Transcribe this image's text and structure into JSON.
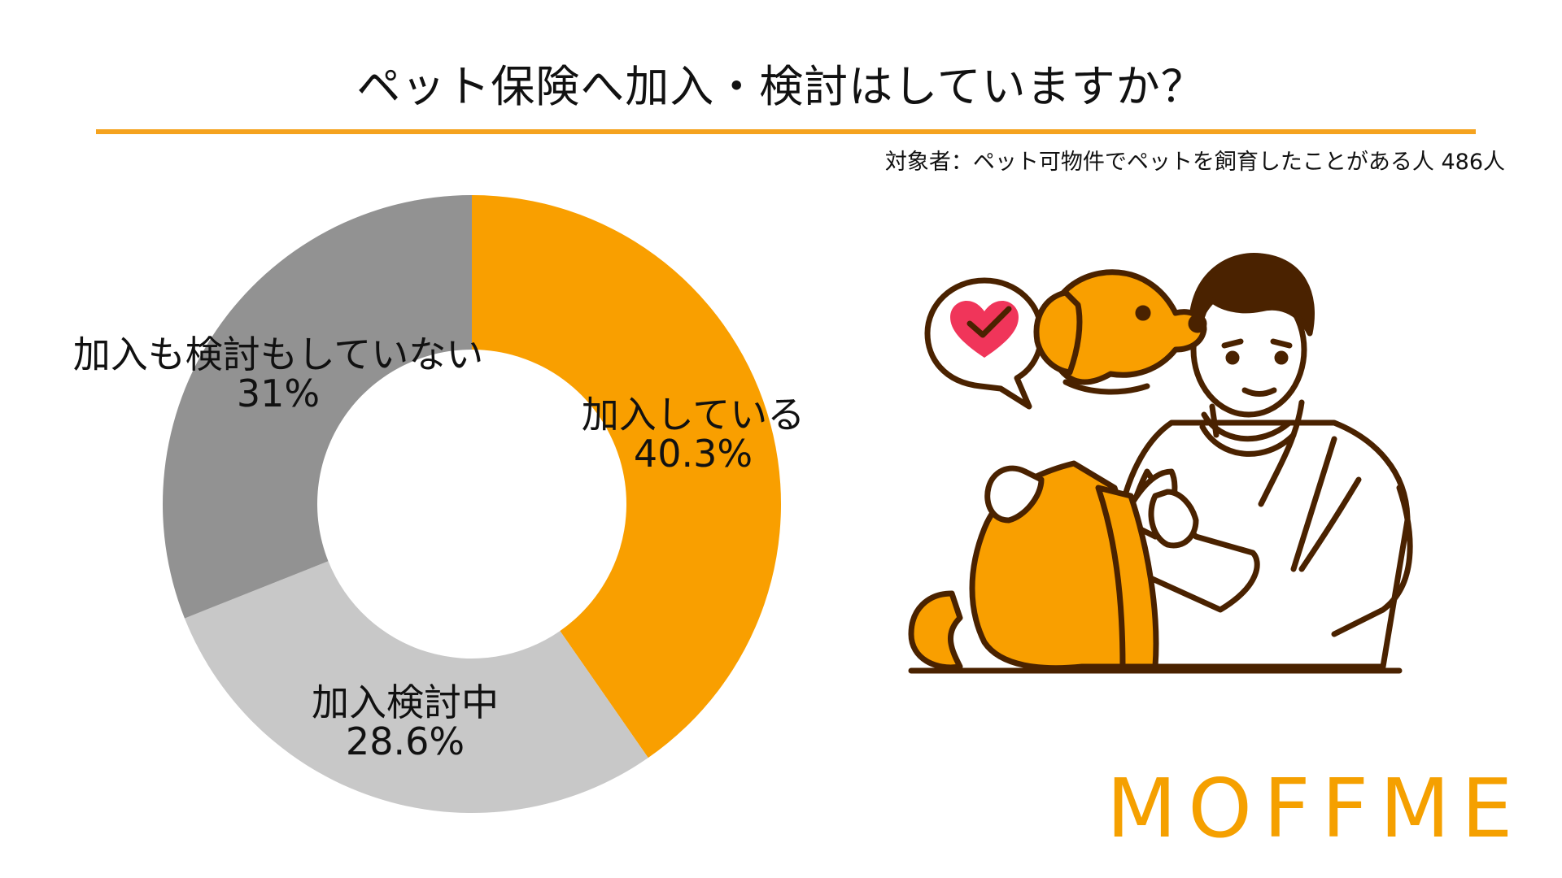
{
  "title": "ペット保険へ加入・検討はしていますか？",
  "subtitle": "対象者：ペット可物件でペットを飼育したことがある人 486人",
  "logo": "MOFFME",
  "chart_data": {
    "type": "pie",
    "title": "ペット保険へ加入・検討はしていますか？",
    "labels": [
      "加入している",
      "加入検討中",
      "加入も検討もしていない"
    ],
    "values": [
      40.3,
      28.6,
      31
    ],
    "value_labels": [
      "40.3%",
      "28.6%",
      "31%"
    ],
    "colors": [
      "#f99f00",
      "#c8c8c8",
      "#929292"
    ],
    "donut": true,
    "start": "top",
    "direction": "clockwise"
  }
}
